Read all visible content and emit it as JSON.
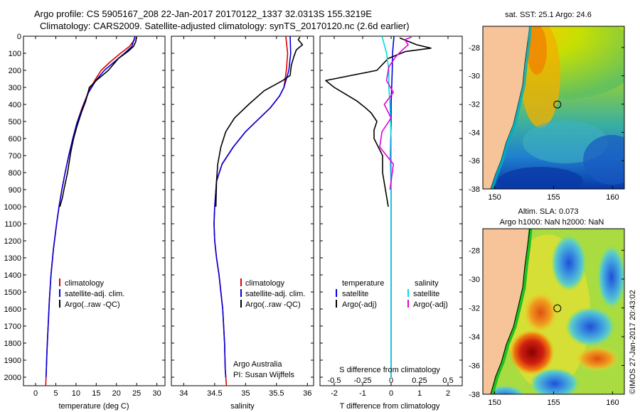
{
  "titles": {
    "line1": "Argo profile: CS 5905167_208 22-Jan-2017 20170122_1337 32.0313S 155.3219E",
    "line2": "Climatology: CARS2009. Satellite-adjusted climatology: synTS_20170120.nc (2.6d earlier)"
  },
  "credit": "©IMOS 27-Jan-2017 20:43:02",
  "colors": {
    "climatology": "#dd0000",
    "satellite": "#0000dd",
    "argo": "#000000",
    "sat_salinity": "#00dddd",
    "argo_salinity": "#dd00dd",
    "land": "#f7c398",
    "coast": "#00aa00"
  },
  "chart_data": [
    {
      "type": "line",
      "xlabel": "temperature (deg C)",
      "ylabel": "",
      "xlim": [
        -3,
        32
      ],
      "ylim": [
        2050,
        0
      ],
      "y_inverted": true,
      "xticks": [
        "0",
        "5",
        "10",
        "15",
        "20",
        "25",
        "30"
      ],
      "yticks": [
        "0",
        "100",
        "200",
        "300",
        "400",
        "500",
        "600",
        "700",
        "800",
        "900",
        "1000",
        "1100",
        "1200",
        "1300",
        "1400",
        "1500",
        "1600",
        "1700",
        "1800",
        "1900",
        "2000"
      ],
      "legend": [
        "climatology",
        "satellite-adj. clim.",
        "Argo(..raw -QC)"
      ],
      "legend_placement": "lower-middle",
      "series": [
        {
          "name": "climatology",
          "color": "#dd0000",
          "x": [
            24.5,
            23.2,
            21.0,
            18.5,
            16.2,
            14.6,
            13.0,
            11.5,
            10.2,
            9.2,
            8.2,
            7.3,
            6.5,
            5.8,
            5.2,
            4.4,
            3.8,
            3.4,
            3.1,
            2.8,
            2.6,
            2.5
          ],
          "y": [
            20,
            60,
            100,
            150,
            200,
            260,
            330,
            420,
            510,
            600,
            700,
            800,
            900,
            1000,
            1100,
            1250,
            1400,
            1550,
            1700,
            1850,
            2000,
            2050
          ]
        },
        {
          "name": "satellite-adj. clim.",
          "color": "#0000dd",
          "x": [
            24.6,
            23.8,
            22.0,
            19.5,
            17.0,
            14.9,
            13.1,
            11.6,
            10.2,
            9.2,
            8.2,
            7.3,
            6.5,
            5.8,
            5.2,
            4.4,
            3.8,
            3.4,
            3.1,
            2.8,
            2.6
          ],
          "y": [
            0,
            60,
            100,
            150,
            200,
            260,
            330,
            420,
            510,
            600,
            700,
            800,
            900,
            1000,
            1100,
            1250,
            1400,
            1550,
            1700,
            1850,
            2000
          ]
        },
        {
          "name": "Argo(..raw -QC)",
          "color": "#000000",
          "x": [
            24.9,
            24.8,
            24.2,
            22.8,
            20.5,
            18.0,
            15.0,
            13.3,
            12.4,
            11.3,
            10.2,
            9.4,
            8.7,
            7.9,
            7.0,
            6.6,
            6.0
          ],
          "y": [
            5,
            30,
            60,
            90,
            130,
            200,
            260,
            300,
            380,
            450,
            530,
            600,
            680,
            800,
            900,
            950,
            1000
          ]
        }
      ]
    },
    {
      "type": "line",
      "xlabel": "salinity",
      "ylabel": "",
      "xlim": [
        33.8,
        36.1
      ],
      "ylim": [
        2050,
        0
      ],
      "y_inverted": true,
      "xticks": [
        "34",
        "34.5",
        "35",
        "35.5",
        "36"
      ],
      "legend": [
        "climatology",
        "satellite-adj. clim.",
        "Argo(..raw -QC)"
      ],
      "legend_placement": "lower-middle",
      "annotations": [
        "Argo Australia",
        "PI: Susan Wijffels"
      ],
      "series": [
        {
          "name": "climatology",
          "color": "#dd0000",
          "x": [
            35.65,
            35.68,
            35.66,
            35.62,
            35.55,
            35.4,
            35.2,
            35.0,
            34.8,
            34.62,
            34.53,
            34.5,
            34.49,
            34.5,
            34.53,
            34.57,
            34.6,
            34.63,
            34.66,
            34.67,
            34.69
          ],
          "y": [
            0,
            100,
            200,
            300,
            350,
            420,
            490,
            560,
            650,
            750,
            850,
            1000,
            1100,
            1200,
            1300,
            1400,
            1500,
            1600,
            1800,
            1950,
            2050
          ]
        },
        {
          "name": "satellite-adj. clim.",
          "color": "#0000dd",
          "x": [
            35.72,
            35.73,
            35.7,
            35.62,
            35.55,
            35.4,
            35.2,
            35.0,
            34.8,
            34.62,
            34.53,
            34.5,
            34.49,
            34.5,
            34.53,
            34.57,
            34.6,
            34.63,
            34.66,
            34.67,
            34.68
          ],
          "y": [
            0,
            100,
            200,
            300,
            350,
            420,
            490,
            560,
            650,
            750,
            850,
            1000,
            1100,
            1200,
            1300,
            1400,
            1500,
            1600,
            1800,
            1950,
            2000
          ]
        },
        {
          "name": "Argo(..raw -QC)",
          "color": "#000000",
          "x": [
            35.88,
            35.85,
            35.92,
            35.82,
            35.78,
            35.74,
            35.72,
            35.6,
            35.45,
            35.3,
            35.05,
            34.82,
            34.68,
            34.6,
            34.55,
            34.53,
            34.52
          ],
          "y": [
            5,
            20,
            50,
            80,
            120,
            170,
            230,
            260,
            290,
            320,
            400,
            480,
            560,
            650,
            750,
            850,
            1000
          ]
        }
      ]
    },
    {
      "type": "line",
      "xlabel": "T difference from climatology",
      "x2label": "S difference from climatology",
      "xlim": [
        -2.5,
        2.5
      ],
      "ylim": [
        2050,
        0
      ],
      "y_inverted": true,
      "xticks": [
        "-2",
        "-1",
        "0",
        "1",
        "2"
      ],
      "x2ticks": [
        "-0.5",
        "-0.25",
        "0",
        "0.25",
        "0.5"
      ],
      "legend": [
        "temperature",
        "satellite",
        "Argo(-adj)",
        "salinity",
        "satellite",
        "Argo(-adj)"
      ],
      "legend_placement": "lower-middle",
      "series": [
        {
          "name": "satellite",
          "group": "temperature",
          "color": "#0000dd",
          "x": [
            0.1,
            0.05,
            0.04,
            0.02,
            0.0,
            0.0,
            -0.02,
            0.0,
            0.0,
            0.0,
            0.0,
            0.0
          ],
          "y": [
            0,
            100,
            200,
            300,
            400,
            500,
            700,
            900,
            1200,
            1500,
            1800,
            2000
          ]
        },
        {
          "name": "Argo(-adj)",
          "group": "temperature",
          "color": "#000000",
          "x": [
            0.3,
            0.9,
            1.4,
            0.5,
            -0.1,
            -0.5,
            -2.3,
            -2.0,
            -1.2,
            -0.9,
            -0.7,
            -0.5,
            -0.6,
            -0.6,
            -0.3,
            -0.3,
            -0.2,
            -0.1
          ],
          "y": [
            10,
            50,
            70,
            90,
            130,
            200,
            260,
            300,
            380,
            420,
            450,
            500,
            550,
            600,
            700,
            800,
            900,
            1000
          ]
        },
        {
          "name": "satellite",
          "group": "salinity",
          "color": "#00dddd",
          "x": [
            -0.08,
            -0.04,
            -0.02,
            -0.02,
            -0.01,
            0.0,
            0.0,
            0.0,
            0.0,
            0.0
          ],
          "y": [
            0,
            100,
            200,
            300,
            400,
            600,
            900,
            1200,
            1600,
            2000
          ]
        },
        {
          "name": "Argo(-adj)",
          "group": "salinity",
          "color": "#dd00dd",
          "x": [
            0.18,
            0.12,
            0.15,
            0.1,
            0.04,
            -0.02,
            -0.04,
            0.02,
            -0.06,
            0.0,
            -0.08,
            -0.1,
            0.02,
            -0.01
          ],
          "y": [
            5,
            20,
            50,
            80,
            120,
            180,
            260,
            330,
            400,
            480,
            560,
            650,
            750,
            900
          ]
        }
      ]
    },
    {
      "type": "heatmap",
      "title": "sat. SST: 25.1  Argo: 24.6",
      "xlim": [
        149,
        161
      ],
      "ylim": [
        -38,
        -26.5
      ],
      "xticks": [
        "150",
        "155",
        "160"
      ],
      "yticks": [
        "-28",
        "-30",
        "-32",
        "-34",
        "-36",
        "-38"
      ],
      "marker": {
        "lon": 155.32,
        "lat": -32.03
      }
    },
    {
      "type": "heatmap",
      "title": "Altim. SLA: 0.073",
      "subtitle": "Argo h1000: NaN h2000: NaN",
      "xlim": [
        149,
        161
      ],
      "ylim": [
        -38,
        -26.5
      ],
      "xticks": [
        "150",
        "155",
        "160"
      ],
      "yticks": [
        "-28",
        "-30",
        "-32",
        "-34",
        "-36",
        "-38"
      ],
      "marker": {
        "lon": 155.32,
        "lat": -32.03
      }
    }
  ]
}
